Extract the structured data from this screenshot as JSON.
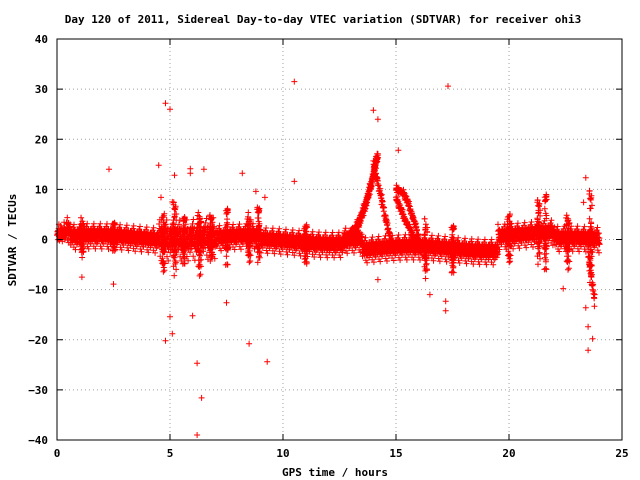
{
  "chart_data": {
    "type": "scatter",
    "title": "Day 120 of 2011, Sidereal Day-to-day VTEC variation (SDTVAR) for receiver ohi3",
    "xlabel": "GPS time / hours",
    "ylabel": "SDTVAR / TECUs",
    "xlim": [
      0,
      25
    ],
    "ylim": [
      -40,
      40
    ],
    "xticks": [
      "0",
      "5",
      "10",
      "15",
      "20",
      "25"
    ],
    "yticks": [
      "40",
      "30",
      "20",
      "10",
      "0",
      "−10",
      "−20",
      "−30",
      "−40"
    ],
    "grid": true,
    "marker": "+",
    "marker_color": "#ff0000",
    "outliers": [
      [
        4.8,
        27.2
      ],
      [
        5.0,
        26.0
      ],
      [
        10.5,
        31.5
      ],
      [
        17.3,
        30.6
      ],
      [
        14.0,
        25.8
      ],
      [
        14.2,
        24.0
      ],
      [
        15.1,
        17.8
      ],
      [
        2.3,
        14.0
      ],
      [
        4.5,
        14.8
      ],
      [
        5.9,
        14.1
      ],
      [
        6.5,
        14.0
      ],
      [
        8.2,
        13.2
      ],
      [
        23.4,
        12.3
      ],
      [
        10.5,
        11.6
      ],
      [
        5.2,
        12.8
      ],
      [
        5.9,
        13.2
      ],
      [
        4.6,
        8.4
      ],
      [
        5.1,
        7.5
      ],
      [
        8.8,
        9.6
      ],
      [
        9.2,
        8.4
      ],
      [
        23.3,
        7.4
      ],
      [
        1.1,
        -7.5
      ],
      [
        2.5,
        -8.9
      ],
      [
        14.2,
        -8.0
      ],
      [
        16.5,
        -11.0
      ],
      [
        17.2,
        -12.3
      ],
      [
        17.2,
        -14.2
      ],
      [
        22.4,
        -9.8
      ],
      [
        7.5,
        -12.6
      ],
      [
        5.0,
        -15.4
      ],
      [
        6.0,
        -15.2
      ],
      [
        5.1,
        -18.8
      ],
      [
        4.8,
        -20.2
      ],
      [
        8.5,
        -20.8
      ],
      [
        23.5,
        -17.4
      ],
      [
        23.7,
        -19.8
      ],
      [
        23.5,
        -22.1
      ],
      [
        23.4,
        -13.6
      ],
      [
        6.2,
        -24.7
      ],
      [
        9.3,
        -24.4
      ],
      [
        6.4,
        -31.6
      ],
      [
        6.2,
        -39.0
      ]
    ],
    "series_features": [
      {
        "x_start": 0.0,
        "x_end": 24.0,
        "shape": "band",
        "center": 0.0,
        "spread": 1.5
      },
      {
        "x_start": 12.7,
        "x_end": 14.2,
        "shape": "ramp",
        "y_from": 0,
        "y_to": 17
      },
      {
        "x_start": 15.0,
        "x_end": 16.0,
        "shape": "ramp",
        "y_from": 10,
        "y_to": 0
      },
      {
        "x_start": 14.0,
        "x_end": 14.8,
        "shape": "ramp",
        "y_from": 7,
        "y_to": -1
      }
    ]
  }
}
